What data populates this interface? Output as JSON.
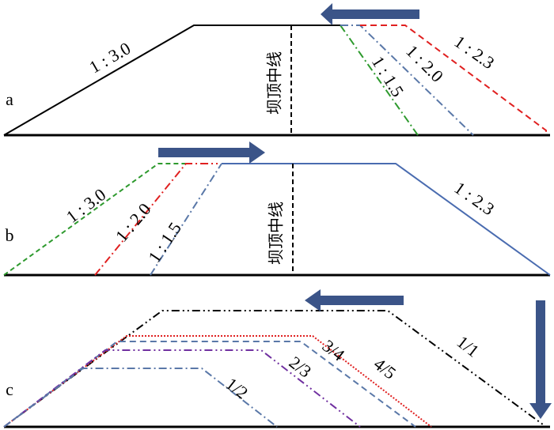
{
  "panels": [
    {
      "label": "a",
      "center_line": "坝顶中线",
      "slopes": [
        "1 : 3.0",
        "1 : 1.5",
        "1 : 2.0",
        "1 : 2.3"
      ]
    },
    {
      "label": "b",
      "center_line": "坝顶中线",
      "slopes": [
        "1 : 3.0",
        "1 : 2.0",
        "1 : 1.5",
        "1 : 2.3"
      ]
    },
    {
      "label": "c",
      "slopes": [
        "1/2",
        "2/3",
        "3/4",
        "4/5",
        "1/1"
      ]
    }
  ]
}
